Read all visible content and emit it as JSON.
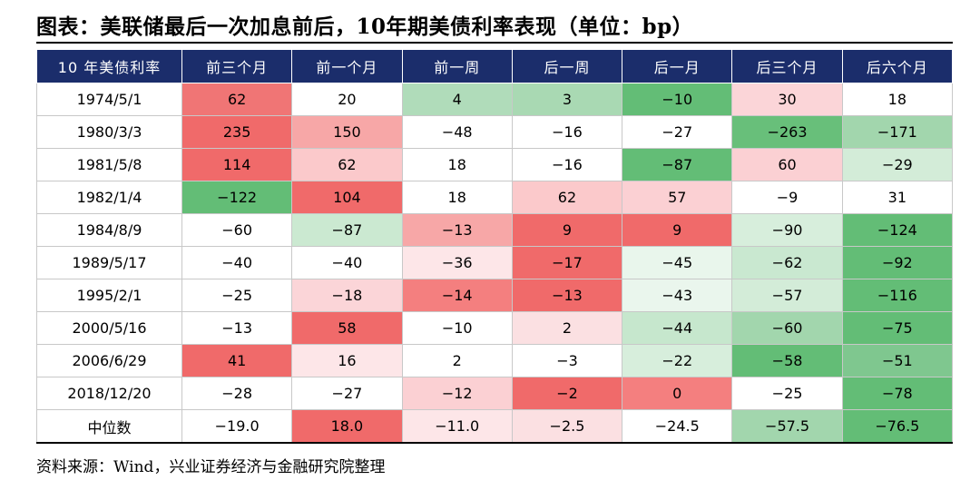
{
  "title": "图表：美联储最后一次加息前后，10年期美债利率表现（单位：bp）",
  "source": "资料来源：Wind，兴业证券经济与金融研究院整理",
  "table": {
    "headers": [
      "10 年美债利率",
      "前三个月",
      "前一个月",
      "前一周",
      "后一周",
      "后一月",
      "后三个月",
      "后六个月"
    ],
    "rows": [
      {
        "label": "1974/5/1",
        "cells": [
          {
            "v": "62",
            "c": "#f07575"
          },
          {
            "v": "20",
            "c": "#ffffff"
          },
          {
            "v": "4",
            "c": "#b0dcba"
          },
          {
            "v": "3",
            "c": "#a9d9b3"
          },
          {
            "v": "−10",
            "c": "#63bd76"
          },
          {
            "v": "30",
            "c": "#fbd5d8"
          },
          {
            "v": "18",
            "c": "#ffffff"
          }
        ]
      },
      {
        "label": "1980/3/3",
        "cells": [
          {
            "v": "235",
            "c": "#f06a6a"
          },
          {
            "v": "150",
            "c": "#f7a7a7"
          },
          {
            "v": "−48",
            "c": "#ffffff"
          },
          {
            "v": "−16",
            "c": "#ffffff"
          },
          {
            "v": "−27",
            "c": "#ffffff"
          },
          {
            "v": "−263",
            "c": "#68bf7a"
          },
          {
            "v": "−171",
            "c": "#a2d6ad"
          }
        ]
      },
      {
        "label": "1981/5/8",
        "cells": [
          {
            "v": "114",
            "c": "#f06a6a"
          },
          {
            "v": "62",
            "c": "#fbc9cb"
          },
          {
            "v": "18",
            "c": "#ffffff"
          },
          {
            "v": "−16",
            "c": "#ffffff"
          },
          {
            "v": "−87",
            "c": "#63bd76"
          },
          {
            "v": "60",
            "c": "#fbd0d3"
          },
          {
            "v": "−29",
            "c": "#d3ecd8"
          }
        ]
      },
      {
        "label": "1982/1/4",
        "cells": [
          {
            "v": "−122",
            "c": "#63bd76"
          },
          {
            "v": "104",
            "c": "#f06a6a"
          },
          {
            "v": "18",
            "c": "#ffffff"
          },
          {
            "v": "62",
            "c": "#fbc9cb"
          },
          {
            "v": "57",
            "c": "#fbd0d3"
          },
          {
            "v": "−9",
            "c": "#ffffff"
          },
          {
            "v": "31",
            "c": "#ffffff"
          }
        ]
      },
      {
        "label": "1984/8/9",
        "cells": [
          {
            "v": "−60",
            "c": "#ffffff"
          },
          {
            "v": "−87",
            "c": "#cbe9d1"
          },
          {
            "v": "−13",
            "c": "#f7a7a7"
          },
          {
            "v": "9",
            "c": "#f06a6a"
          },
          {
            "v": "9",
            "c": "#f06a6a"
          },
          {
            "v": "−90",
            "c": "#d7eedc"
          },
          {
            "v": "−124",
            "c": "#63bd76"
          }
        ]
      },
      {
        "label": "1989/5/17",
        "cells": [
          {
            "v": "−40",
            "c": "#ffffff"
          },
          {
            "v": "−40",
            "c": "#ffffff"
          },
          {
            "v": "−36",
            "c": "#fde6e8"
          },
          {
            "v": "−17",
            "c": "#f06a6a"
          },
          {
            "v": "−45",
            "c": "#e9f6ec"
          },
          {
            "v": "−62",
            "c": "#c9e8d0"
          },
          {
            "v": "−92",
            "c": "#63bd76"
          }
        ]
      },
      {
        "label": "1995/2/1",
        "cells": [
          {
            "v": "−25",
            "c": "#ffffff"
          },
          {
            "v": "−18",
            "c": "#fbd5d8"
          },
          {
            "v": "−14",
            "c": "#f47f7f"
          },
          {
            "v": "−13",
            "c": "#f06a6a"
          },
          {
            "v": "−43",
            "c": "#eaf6ed"
          },
          {
            "v": "−57",
            "c": "#d3ecd8"
          },
          {
            "v": "−116",
            "c": "#63bd76"
          }
        ]
      },
      {
        "label": "2000/5/16",
        "cells": [
          {
            "v": "−13",
            "c": "#ffffff"
          },
          {
            "v": "58",
            "c": "#f06a6a"
          },
          {
            "v": "−10",
            "c": "#ffffff"
          },
          {
            "v": "2",
            "c": "#fbe0e2"
          },
          {
            "v": "−44",
            "c": "#c6e7cd"
          },
          {
            "v": "−60",
            "c": "#a2d6ad"
          },
          {
            "v": "−75",
            "c": "#63bd76"
          }
        ]
      },
      {
        "label": "2006/6/29",
        "cells": [
          {
            "v": "41",
            "c": "#f06a6a"
          },
          {
            "v": "16",
            "c": "#fde6e8"
          },
          {
            "v": "2",
            "c": "#ffffff"
          },
          {
            "v": "−3",
            "c": "#ffffff"
          },
          {
            "v": "−22",
            "c": "#d7eedc"
          },
          {
            "v": "−58",
            "c": "#63bd76"
          },
          {
            "v": "−51",
            "c": "#7fc78f"
          }
        ]
      },
      {
        "label": "2018/12/20",
        "cells": [
          {
            "v": "−28",
            "c": "#ffffff"
          },
          {
            "v": "−27",
            "c": "#ffffff"
          },
          {
            "v": "−12",
            "c": "#fbd0d3"
          },
          {
            "v": "−2",
            "c": "#f06a6a"
          },
          {
            "v": "0",
            "c": "#f47f7f"
          },
          {
            "v": "−25",
            "c": "#ffffff"
          },
          {
            "v": "−78",
            "c": "#63bd76"
          }
        ]
      },
      {
        "label": "中位数",
        "cells": [
          {
            "v": "−19.0",
            "c": "#ffffff"
          },
          {
            "v": "18.0",
            "c": "#f06a6a"
          },
          {
            "v": "−11.0",
            "c": "#fde6e8"
          },
          {
            "v": "−2.5",
            "c": "#fbe0e2"
          },
          {
            "v": "−24.5",
            "c": "#ffffff"
          },
          {
            "v": "−57.5",
            "c": "#a2d6ad"
          },
          {
            "v": "−76.5",
            "c": "#63bd76"
          }
        ]
      }
    ]
  }
}
